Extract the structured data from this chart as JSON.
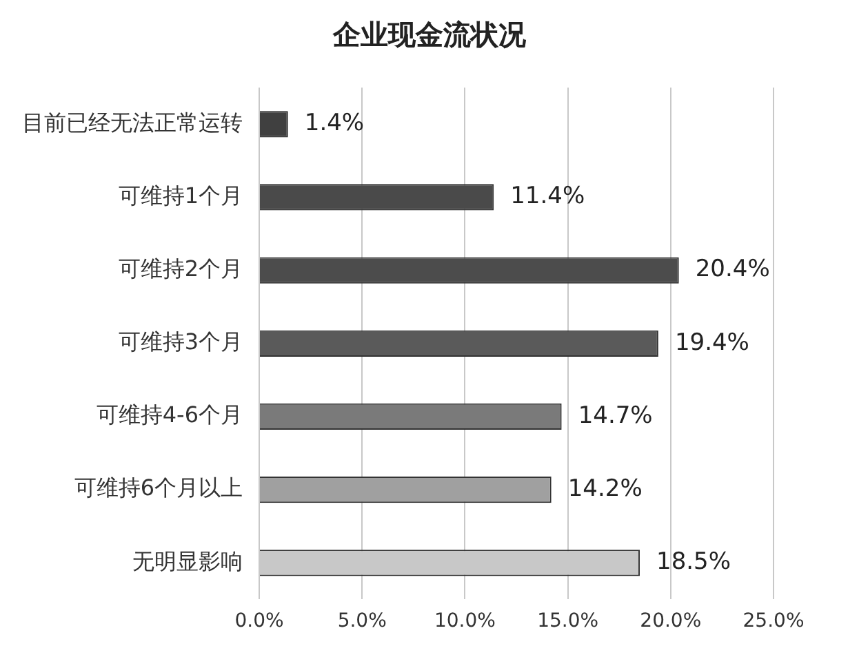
{
  "chart_data": {
    "type": "bar",
    "orientation": "horizontal",
    "title": "企业现金流状况",
    "categories": [
      "目前已经无法正常运转",
      "可维持1个月",
      "可维持2个月",
      "可维持3个月",
      "可维持4-6个月",
      "可维持6个月以上",
      "无明显影响"
    ],
    "values": [
      1.4,
      11.4,
      20.4,
      19.4,
      14.7,
      14.2,
      18.5
    ],
    "value_labels": [
      "1.4%",
      "11.4%",
      "20.4%",
      "19.4%",
      "14.7%",
      "14.2%",
      "18.5%"
    ],
    "colors": [
      "#404040",
      "#4a4a4a",
      "#4c4c4c",
      "#5a5a5a",
      "#7a7a7a",
      "#a0a0a0",
      "#c8c8c8"
    ],
    "xlim": [
      0,
      25
    ],
    "xticks": [
      {
        "value": 0,
        "label": "0.0%"
      },
      {
        "value": 5,
        "label": "5.0%"
      },
      {
        "value": 10,
        "label": "10.0%"
      },
      {
        "value": 15,
        "label": "15.0%"
      },
      {
        "value": 20,
        "label": "20.0%"
      },
      {
        "value": 25,
        "label": "25.0%"
      }
    ],
    "grid": "x",
    "legend": false
  }
}
